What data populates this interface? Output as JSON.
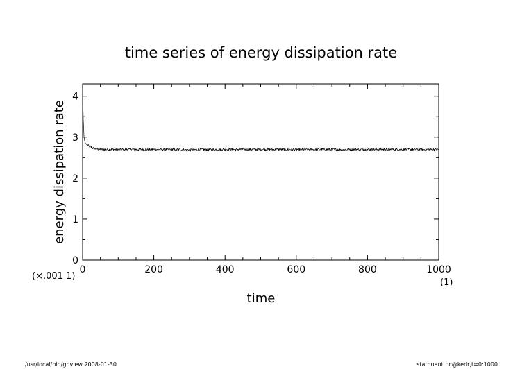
{
  "chart_data": {
    "type": "line",
    "title": "time series of energy dissipation rate",
    "xlabel": "time",
    "ylabel": "energy dissipation rate",
    "x_unit": "(1)",
    "y_unit": "(×.001 1)",
    "xlim": [
      0,
      1000
    ],
    "ylim": [
      0,
      4.3
    ],
    "xticks": [
      0,
      200,
      400,
      600,
      800,
      1000
    ],
    "yticks": [
      0,
      1,
      2,
      3,
      4
    ],
    "grid": false,
    "legend": "none",
    "series": [
      {
        "x": [
          0,
          2,
          4,
          6,
          8,
          10,
          15,
          20,
          25,
          30,
          40,
          50,
          60,
          80,
          100,
          150,
          200,
          250,
          300,
          350,
          400,
          450,
          500,
          550,
          600,
          650,
          700,
          750,
          800,
          850,
          900,
          950,
          1000
        ],
        "values": [
          4.15,
          3.4,
          3.0,
          2.9,
          2.85,
          2.83,
          2.8,
          2.77,
          2.75,
          2.73,
          2.71,
          2.7,
          2.7,
          2.7,
          2.7,
          2.7,
          2.7,
          2.7,
          2.69,
          2.7,
          2.7,
          2.7,
          2.7,
          2.7,
          2.7,
          2.7,
          2.7,
          2.7,
          2.7,
          2.7,
          2.7,
          2.7,
          2.7
        ],
        "fluctuation": 0.03,
        "color": "#000000"
      }
    ]
  },
  "footer": {
    "left": "/usr/local/bin/gpview   2008-01-30",
    "right": "statquant.nc@kedr,t=0:1000"
  }
}
